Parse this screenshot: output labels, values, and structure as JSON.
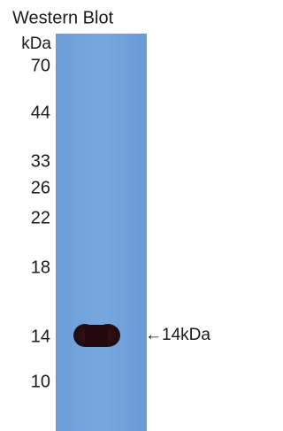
{
  "title": "Western Blot",
  "unit": "kDa",
  "markers": [
    "70",
    "44",
    "33",
    "26",
    "22",
    "18",
    "14",
    "10"
  ],
  "band_label": "←14kDa"
}
